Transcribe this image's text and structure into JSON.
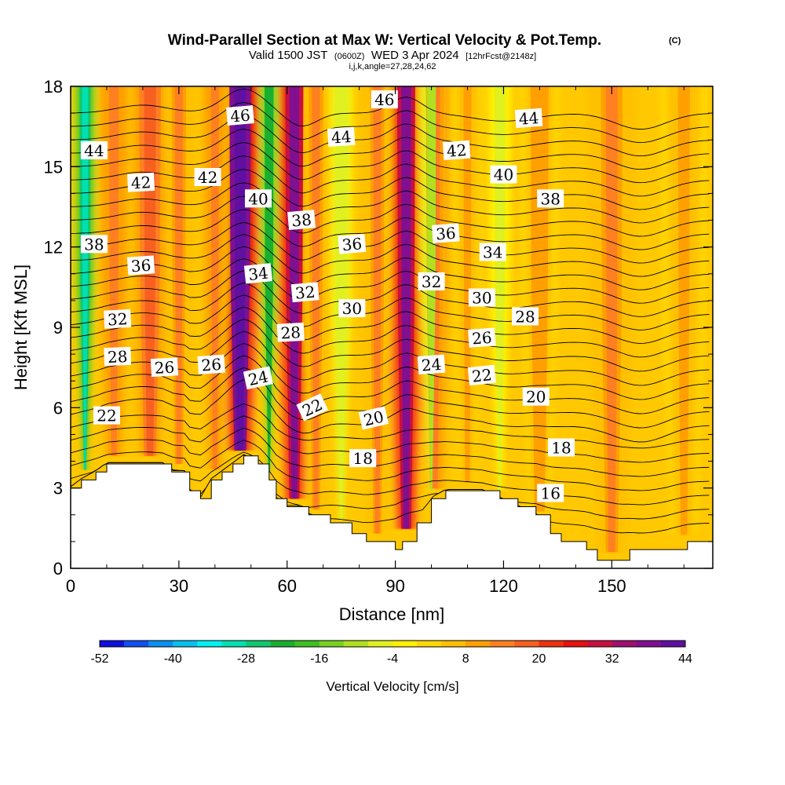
{
  "title": {
    "main": "Wind-Parallel Section at Max W: Vertical Velocity & Pot.Temp.",
    "mark": "(C)",
    "valid_pre": "Valid 1500 JST",
    "valid_z": "(0600Z)",
    "valid_date": "WED 3 Apr 2024",
    "fcst": "[12hrFcst@2148z]",
    "indices": "i,j,k,angle=27,28,24,62"
  },
  "chart_data": {
    "type": "heatmap",
    "xlabel": "Distance [nm]",
    "ylabel": "Height [Kft MSL]",
    "xlim": [
      0,
      178
    ],
    "ylim": [
      0,
      18
    ],
    "x_ticks": [
      0,
      30,
      60,
      90,
      120,
      150
    ],
    "y_ticks": [
      0,
      3,
      6,
      9,
      12,
      15,
      18
    ],
    "colorbar": {
      "title": "Vertical Velocity [cm/s]",
      "tick_labels": [
        "-52",
        "-40",
        "-28",
        "-16",
        "-4",
        "8",
        "20",
        "32",
        "44"
      ],
      "colors": [
        "#1010e0",
        "#1450f0",
        "#0a90f0",
        "#08c0f0",
        "#00f0f0",
        "#00e0b0",
        "#10c870",
        "#18b030",
        "#40c020",
        "#78d020",
        "#b0e020",
        "#e0f020",
        "#fff000",
        "#ffd800",
        "#ffc000",
        "#ffa000",
        "#ff8020",
        "#f86020",
        "#f03010",
        "#e81010",
        "#c81040",
        "#a01070",
        "#801090",
        "#6010a0"
      ]
    },
    "updraft_bands": [
      {
        "x": 47,
        "w": 6,
        "strength": 44
      },
      {
        "x": 62,
        "w": 5,
        "strength": 36
      },
      {
        "x": 93,
        "w": 5,
        "strength": 36
      },
      {
        "x": 22,
        "w": 6,
        "strength": 16
      },
      {
        "x": 12,
        "w": 5,
        "strength": 14
      },
      {
        "x": 30,
        "w": 4,
        "strength": 12
      },
      {
        "x": 40,
        "w": 4,
        "strength": 14
      },
      {
        "x": 68,
        "w": 4,
        "strength": 12
      },
      {
        "x": 85,
        "w": 4,
        "strength": 12
      },
      {
        "x": 101,
        "w": 5,
        "strength": 14
      },
      {
        "x": 110,
        "w": 4,
        "strength": 8
      },
      {
        "x": 130,
        "w": 5,
        "strength": 10
      },
      {
        "x": 150,
        "w": 6,
        "strength": 12
      },
      {
        "x": 170,
        "w": 6,
        "strength": 8
      }
    ],
    "downdraft_bands": [
      {
        "x": 4,
        "w": 3,
        "strength": -32
      },
      {
        "x": 55,
        "w": 2.5,
        "strength": -24
      },
      {
        "x": 75,
        "w": 3,
        "strength": -8
      },
      {
        "x": 100,
        "w": 2.5,
        "strength": -12
      },
      {
        "x": 119,
        "w": 3,
        "strength": -6
      }
    ],
    "terrain": [
      {
        "x": 0,
        "h": 3.0
      },
      {
        "x": 3,
        "h": 3.3
      },
      {
        "x": 7,
        "h": 3.6
      },
      {
        "x": 10,
        "h": 3.9
      },
      {
        "x": 26,
        "h": 3.9
      },
      {
        "x": 28,
        "h": 3.6
      },
      {
        "x": 32,
        "h": 3.6
      },
      {
        "x": 33,
        "h": 2.9
      },
      {
        "x": 36,
        "h": 2.6
      },
      {
        "x": 39,
        "h": 3.3
      },
      {
        "x": 42,
        "h": 3.6
      },
      {
        "x": 45,
        "h": 3.9
      },
      {
        "x": 48,
        "h": 4.2
      },
      {
        "x": 52,
        "h": 3.9
      },
      {
        "x": 55,
        "h": 3.3
      },
      {
        "x": 57,
        "h": 2.6
      },
      {
        "x": 60,
        "h": 2.3
      },
      {
        "x": 63,
        "h": 2.3
      },
      {
        "x": 66,
        "h": 2.0
      },
      {
        "x": 72,
        "h": 1.7
      },
      {
        "x": 78,
        "h": 1.3
      },
      {
        "x": 82,
        "h": 1.0
      },
      {
        "x": 86,
        "h": 1.0
      },
      {
        "x": 90,
        "h": 0.7
      },
      {
        "x": 92,
        "h": 1.0
      },
      {
        "x": 96,
        "h": 1.7
      },
      {
        "x": 100,
        "h": 2.6
      },
      {
        "x": 104,
        "h": 2.9
      },
      {
        "x": 114,
        "h": 2.9
      },
      {
        "x": 119,
        "h": 2.6
      },
      {
        "x": 124,
        "h": 2.3
      },
      {
        "x": 129,
        "h": 2.0
      },
      {
        "x": 133,
        "h": 1.3
      },
      {
        "x": 136,
        "h": 1.0
      },
      {
        "x": 143,
        "h": 0.7
      },
      {
        "x": 146,
        "h": 0.3
      },
      {
        "x": 152,
        "h": 0.3
      },
      {
        "x": 155,
        "h": 0.7
      },
      {
        "x": 165,
        "h": 0.7
      },
      {
        "x": 171,
        "h": 1.0
      },
      {
        "x": 178,
        "h": 1.0
      }
    ],
    "theta_levels": {
      "start": 16,
      "end": 46,
      "step": 1,
      "base_height": 2.0,
      "spacing": 0.5
    },
    "contour_labels": [
      {
        "text": "46",
        "x": 47,
        "y": 16.9,
        "angle": -5
      },
      {
        "text": "46",
        "x": 87,
        "y": 17.5,
        "angle": 0
      },
      {
        "text": "44",
        "x": 6.5,
        "y": 15.6,
        "angle": 0
      },
      {
        "text": "44",
        "x": 75,
        "y": 16.1,
        "angle": -4
      },
      {
        "text": "44",
        "x": 127,
        "y": 16.8,
        "angle": -4
      },
      {
        "text": "42",
        "x": 19.5,
        "y": 14.4,
        "angle": -3
      },
      {
        "text": "42",
        "x": 38,
        "y": 14.6,
        "angle": 0
      },
      {
        "text": "42",
        "x": 107,
        "y": 15.6,
        "angle": -4
      },
      {
        "text": "40",
        "x": 52,
        "y": 13.8,
        "angle": 0
      },
      {
        "text": "40",
        "x": 120,
        "y": 14.7,
        "angle": 0
      },
      {
        "text": "38",
        "x": 6.5,
        "y": 12.1,
        "angle": 0
      },
      {
        "text": "38",
        "x": 64,
        "y": 13.0,
        "angle": -5
      },
      {
        "text": "38",
        "x": 133,
        "y": 13.8,
        "angle": 0
      },
      {
        "text": "36",
        "x": 19.5,
        "y": 11.3,
        "angle": -4
      },
      {
        "text": "36",
        "x": 78,
        "y": 12.1,
        "angle": -5
      },
      {
        "text": "36",
        "x": 104,
        "y": 12.5,
        "angle": -4
      },
      {
        "text": "34",
        "x": 52,
        "y": 11.0,
        "angle": -6
      },
      {
        "text": "34",
        "x": 117,
        "y": 11.8,
        "angle": 0
      },
      {
        "text": "32",
        "x": 13,
        "y": 9.3,
        "angle": -3
      },
      {
        "text": "32",
        "x": 65,
        "y": 10.3,
        "angle": -5
      },
      {
        "text": "32",
        "x": 100,
        "y": 10.7,
        "angle": 0
      },
      {
        "text": "30",
        "x": 78,
        "y": 9.7,
        "angle": 0
      },
      {
        "text": "30",
        "x": 114,
        "y": 10.1,
        "angle": 0
      },
      {
        "text": "28",
        "x": 13,
        "y": 7.9,
        "angle": -2
      },
      {
        "text": "28",
        "x": 61,
        "y": 8.8,
        "angle": -3
      },
      {
        "text": "28",
        "x": 126,
        "y": 9.4,
        "angle": 0
      },
      {
        "text": "26",
        "x": 26,
        "y": 7.5,
        "angle": -3
      },
      {
        "text": "26",
        "x": 39,
        "y": 7.6,
        "angle": -4
      },
      {
        "text": "26",
        "x": 114,
        "y": 8.6,
        "angle": -4
      },
      {
        "text": "24",
        "x": 52,
        "y": 7.1,
        "angle": -12
      },
      {
        "text": "24",
        "x": 100,
        "y": 7.6,
        "angle": -4
      },
      {
        "text": "22",
        "x": 10,
        "y": 5.7,
        "angle": 0
      },
      {
        "text": "22",
        "x": 67,
        "y": 6.0,
        "angle": -25
      },
      {
        "text": "22",
        "x": 114,
        "y": 7.2,
        "angle": -6
      },
      {
        "text": "20",
        "x": 84,
        "y": 5.6,
        "angle": -13
      },
      {
        "text": "20",
        "x": 129,
        "y": 6.4,
        "angle": 0
      },
      {
        "text": "18",
        "x": 81,
        "y": 4.1,
        "angle": 0
      },
      {
        "text": "18",
        "x": 136,
        "y": 4.5,
        "angle": 0
      },
      {
        "text": "16",
        "x": 133,
        "y": 2.8,
        "angle": 0
      }
    ]
  }
}
